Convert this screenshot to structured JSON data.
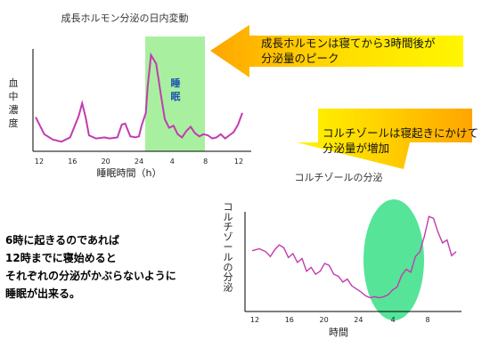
{
  "chart_data": [
    {
      "type": "line",
      "title": "成長ホルモン分泌の日内変動",
      "ylabel": "血中濃度",
      "xlabel": "睡眠時間（h）",
      "x_ticks": [
        "12",
        "16",
        "20",
        "24",
        "4",
        "8",
        "12"
      ],
      "highlight_label": "睡眠",
      "series": [
        {
          "x": [
            0,
            1,
            2,
            3,
            4,
            5,
            5.4,
            5.8,
            6.2,
            7,
            8,
            8.6,
            9.5,
            10,
            10.4,
            11,
            11.6,
            12,
            12.3,
            12.8,
            13,
            13.4,
            14,
            14.5,
            15,
            15.5,
            16,
            16.5,
            17,
            17.5,
            18,
            18.5,
            19,
            19.5,
            20,
            20.5,
            21,
            21.5,
            22,
            22.5,
            23,
            23.5,
            24
          ],
          "y": [
            3.2,
            1.6,
            1.1,
            0.9,
            1.3,
            3.3,
            4.5,
            3.2,
            1.5,
            1.2,
            1.3,
            1.2,
            1.3,
            2.5,
            2.6,
            1.4,
            1.3,
            1.4,
            2.4,
            3.6,
            6.0,
            9.0,
            8.2,
            5.5,
            3.0,
            2.2,
            2.4,
            1.6,
            1.3,
            1.9,
            2.3,
            1.7,
            1.4,
            1.6,
            1.5,
            1.2,
            1.3,
            1.6,
            1.2,
            1.5,
            1.8,
            2.5,
            3.6
          ]
        }
      ],
      "ylim": [
        0,
        10
      ]
    },
    {
      "type": "line",
      "title": "コルチゾールの分泌",
      "ylabel": "コルチゾールの分泌",
      "xlabel": "時間",
      "x_ticks": [
        "12",
        "16",
        "20",
        "24",
        "4",
        "8"
      ],
      "series": [
        {
          "x": [
            0,
            0.8,
            1.5,
            2,
            2.5,
            3,
            3.5,
            4,
            4.5,
            5,
            5.5,
            6,
            6.5,
            7,
            7.5,
            8,
            8.5,
            9,
            9.5,
            10,
            10.5,
            11,
            11.5,
            12,
            12.5,
            13,
            13.5,
            14,
            14.5,
            15,
            15.5,
            16,
            16.5,
            17,
            17.5,
            18,
            18.5,
            19,
            19.5,
            20,
            20.5,
            21,
            21.5,
            22,
            22.5
          ],
          "y": [
            5.3,
            5.5,
            5.2,
            4.7,
            5.4,
            5.9,
            5.6,
            4.6,
            5.0,
            4.1,
            4.5,
            3.2,
            3.6,
            2.9,
            3.2,
            4.0,
            3.8,
            2.9,
            2.7,
            2.1,
            2.4,
            1.7,
            1.4,
            1.1,
            0.7,
            0.5,
            0.6,
            0.5,
            0.6,
            0.8,
            1.3,
            1.6,
            2.8,
            3.4,
            3.1,
            4.7,
            5.2,
            6.8,
            8.8,
            8.6,
            7.2,
            6.1,
            6.4,
            4.8,
            5.2
          ],
          "color": "#c23bb0"
        }
      ],
      "ylim": [
        0,
        10
      ]
    }
  ],
  "callout_gh": {
    "line1": "成長ホルモンは寝てから3時間後が",
    "line2": "分泌量のピーク"
  },
  "callout_cortisol": {
    "line1": "コルチゾールは寝起きにかけて",
    "line2": "分泌量が増加"
  },
  "note": {
    "line1": "6時に起きるのであれば",
    "line2": "12時までに寝始めると",
    "line3": "それぞれの分泌がかぶらないように",
    "line4": "睡眠が出来る。"
  },
  "colors": {
    "curve": "#c23bb0",
    "gh_peak_curve": "#8a7a66",
    "sleep_band": "#a8f0a0",
    "cortisol_ellipse": "#3fe08a",
    "arrow_yellow": "#fff200",
    "arrow_orange": "#ffa500"
  }
}
